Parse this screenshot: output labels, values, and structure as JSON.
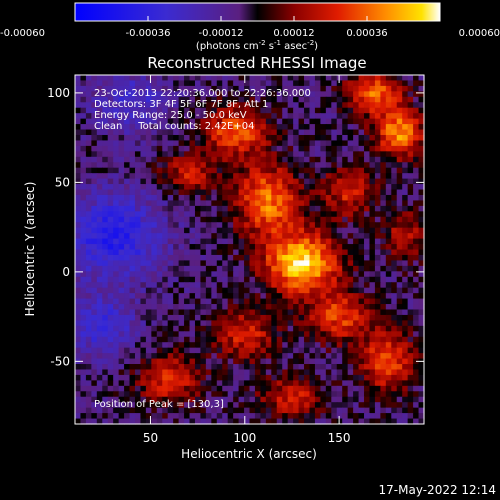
{
  "chart_data": {
    "type": "heatmap",
    "title": "Reconstructed RHESSI Image",
    "xlabel": "Heliocentric X (arcsec)",
    "ylabel": "Heliocentric Y (arcsec)",
    "xlim": [
      10,
      195
    ],
    "ylim": [
      -85,
      110
    ],
    "xticks": [
      50,
      100,
      150
    ],
    "yticks": [
      -50,
      0,
      50,
      100
    ],
    "colorbar": {
      "ticks": [
        "-0.00060",
        "-0.00036",
        "-0.00012",
        "0.00012",
        "0.00036",
        "0.00060"
      ],
      "range": [
        -0.0006,
        0.0006
      ],
      "units_prefix": "(photons cm",
      "units_sup1": "-2",
      "units_mid1": " s",
      "units_sup2": "-1",
      "units_mid2": " asec",
      "units_sup3": "-2",
      "units_suffix": ")"
    },
    "info_lines": [
      "23-Oct-2013 22:20:36.000 to 22:26:36.000",
      "Detectors: 3F 4F 5F 6F 7F 8F, Att 1",
      "Energy Range: 25.0 - 50.0 keV",
      "Clean     Total counts: 2.42E+04"
    ],
    "peak_label": "Position of Peak = [130,3]",
    "peak": {
      "x": 130,
      "y": 3
    },
    "blobs": [
      {
        "x": 130,
        "y": 5,
        "amp": 0.0006,
        "sx": 14,
        "sy": 12
      },
      {
        "x": 112,
        "y": 40,
        "amp": 0.00045,
        "sx": 12,
        "sy": 14
      },
      {
        "x": 95,
        "y": 78,
        "amp": 0.0004,
        "sx": 12,
        "sy": 10
      },
      {
        "x": 70,
        "y": 55,
        "amp": 0.00028,
        "sx": 10,
        "sy": 8
      },
      {
        "x": 182,
        "y": 78,
        "amp": 0.00048,
        "sx": 9,
        "sy": 10
      },
      {
        "x": 168,
        "y": 100,
        "amp": 0.00042,
        "sx": 10,
        "sy": 8
      },
      {
        "x": 155,
        "y": 45,
        "amp": 0.0003,
        "sx": 10,
        "sy": 10
      },
      {
        "x": 150,
        "y": -25,
        "amp": 0.00035,
        "sx": 12,
        "sy": 10
      },
      {
        "x": 100,
        "y": -35,
        "amp": 0.0003,
        "sx": 12,
        "sy": 10
      },
      {
        "x": 60,
        "y": -60,
        "amp": 0.00032,
        "sx": 12,
        "sy": 10
      },
      {
        "x": 175,
        "y": -50,
        "amp": 0.00038,
        "sx": 10,
        "sy": 12
      },
      {
        "x": 125,
        "y": -70,
        "amp": 0.0003,
        "sx": 12,
        "sy": 8
      },
      {
        "x": 185,
        "y": 20,
        "amp": 0.00025,
        "sx": 8,
        "sy": 10
      },
      {
        "x": 30,
        "y": 20,
        "amp": -0.00035,
        "sx": 18,
        "sy": 16
      },
      {
        "x": 40,
        "y": 95,
        "amp": -0.0002,
        "sx": 14,
        "sy": 12
      },
      {
        "x": 25,
        "y": -30,
        "amp": -0.00025,
        "sx": 12,
        "sy": 12
      }
    ]
  },
  "footer": {
    "datetime": "17-May-2022 12:14"
  }
}
